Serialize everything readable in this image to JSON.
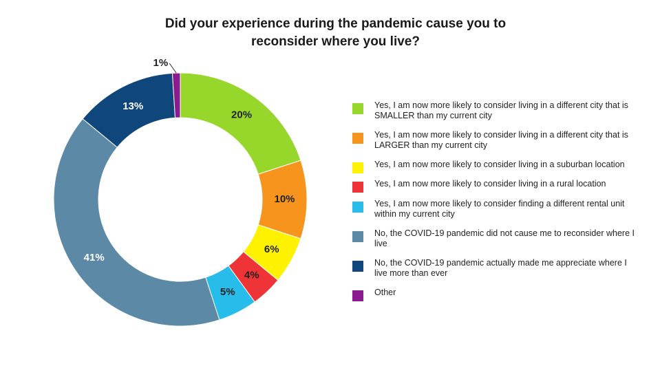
{
  "title_lines": [
    "Did your experience during the pandemic cause you to",
    "reconsider where you live?"
  ],
  "chart_data": {
    "type": "pie",
    "donut": true,
    "title": "Did your experience during the pandemic cause you to reconsider where you live?",
    "legend_position": "right",
    "slices": [
      {
        "label": "Yes, I am now more likely to consider living in a different city that is SMALLER than my current city",
        "value": 20,
        "display": "20%",
        "color": "#97d62a"
      },
      {
        "label": "Yes, I am now more likely to consider living in a different city that is LARGER than my current city",
        "value": 10,
        "display": "10%",
        "color": "#f7941d"
      },
      {
        "label": "Yes, I am now more likely to consider living in a suburban location",
        "value": 6,
        "display": "6%",
        "color": "#fef200"
      },
      {
        "label": "Yes, I am now more likely to consider living in a rural location",
        "value": 4,
        "display": "4%",
        "color": "#ee3436"
      },
      {
        "label": "Yes, I am now more likely to consider finding a different rental unit within my current city",
        "value": 5,
        "display": "5%",
        "color": "#27bcea"
      },
      {
        "label": "No, the COVID-19 pandemic did not cause me to reconsider where I live",
        "value": 41,
        "display": "41%",
        "color": "#5b89a6"
      },
      {
        "label": "No, the COVID-19 pandemic actually made me appreciate where I live more than ever",
        "value": 13,
        "display": "13%",
        "color": "#0f467b"
      },
      {
        "label": "Other",
        "value": 1,
        "display": "1%",
        "color": "#8b1c8f"
      }
    ]
  }
}
